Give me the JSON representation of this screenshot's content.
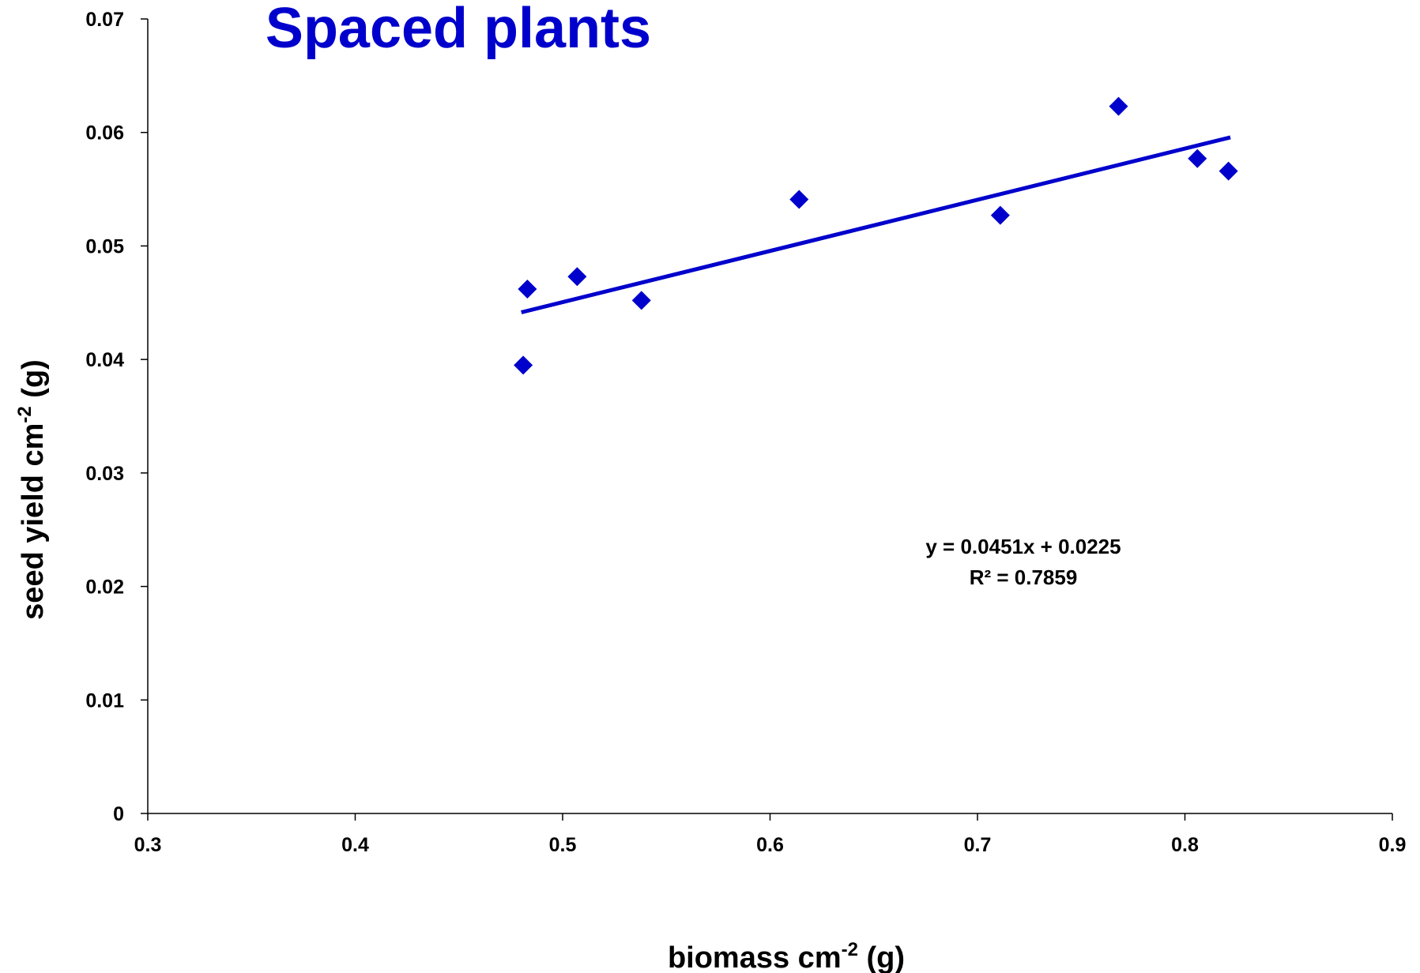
{
  "colors": {
    "accent": "#0000CC",
    "axis": "#000000"
  },
  "chart_data": {
    "type": "scatter",
    "title": "Spaced plants",
    "xlabel": {
      "main": "biomass cm",
      "sup": "-2",
      "tail": " (g)"
    },
    "ylabel": {
      "main": "seed yield cm",
      "sup": "-2",
      "tail": " (g)"
    },
    "xlim": [
      0.3,
      0.9
    ],
    "ylim": [
      0,
      0.07
    ],
    "x_ticks": [
      "0.3",
      "0.4",
      "0.5",
      "0.6",
      "0.7",
      "0.8",
      "0.9"
    ],
    "y_ticks": [
      "0",
      "0.01",
      "0.02",
      "0.03",
      "0.04",
      "0.05",
      "0.06",
      "0.07"
    ],
    "grid": false,
    "marker": "diamond",
    "points": [
      {
        "x": 0.481,
        "y": 0.0395
      },
      {
        "x": 0.483,
        "y": 0.0462
      },
      {
        "x": 0.507,
        "y": 0.0473
      },
      {
        "x": 0.538,
        "y": 0.0452
      },
      {
        "x": 0.614,
        "y": 0.0541
      },
      {
        "x": 0.711,
        "y": 0.0527
      },
      {
        "x": 0.768,
        "y": 0.0623
      },
      {
        "x": 0.806,
        "y": 0.0577
      },
      {
        "x": 0.821,
        "y": 0.0566
      }
    ],
    "trendline": {
      "type": "linear",
      "slope": 0.0451,
      "intercept": 0.0225,
      "x_range": [
        0.481,
        0.821
      ]
    },
    "annotations": {
      "equation": "y = 0.0451x + 0.0225",
      "r_squared": "R² = 0.7859"
    }
  }
}
